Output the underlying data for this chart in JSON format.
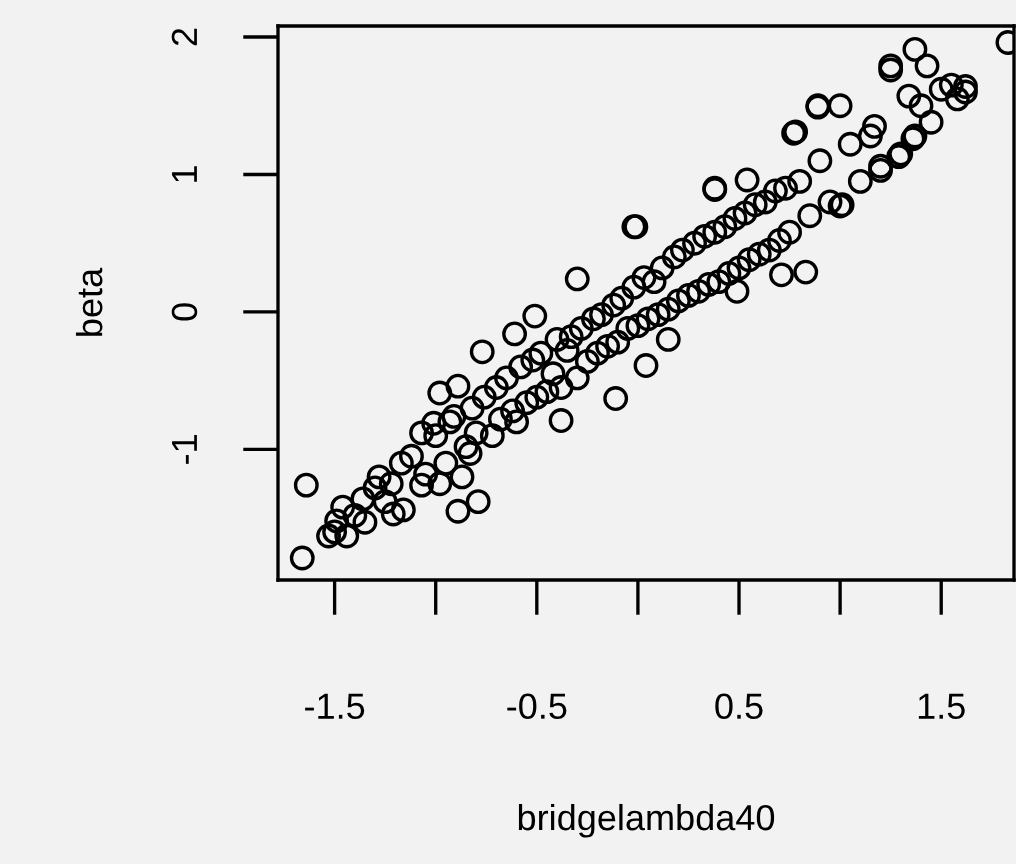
{
  "chart_data": {
    "type": "scatter",
    "xlabel": "bridgelambda40",
    "ylabel": "beta",
    "xlim": [
      -1.78,
      1.86
    ],
    "ylim": [
      -1.95,
      2.08
    ],
    "xticks": [
      -1.5,
      -0.5,
      0.5,
      1.5
    ],
    "yticks": [
      -1,
      0,
      1,
      2
    ],
    "marker": "circle",
    "grid": false,
    "legend": false,
    "series": [
      {
        "color": "#000000",
        "x": [
          -1.66,
          -1.64,
          -1.53,
          -1.49,
          -1.44,
          -1.36,
          -1.35,
          -1.28,
          -1.21,
          -1.16,
          -1.22,
          -1.17,
          -1.07,
          -1.07,
          -0.98,
          -0.89,
          -0.79,
          -0.87,
          -0.98,
          -0.89,
          -1.01,
          -0.91,
          -0.83,
          -0.77,
          -0.61,
          -0.51,
          -0.3,
          -0.38,
          -0.11,
          0.04,
          0.15,
          -0.01,
          0.38,
          0.49,
          0.71,
          0.83,
          1.01,
          0.78,
          0.89,
          1.0,
          1.2,
          1.3,
          1.36,
          1.17,
          1.25,
          1.37,
          1.25,
          1.83,
          1.62,
          1.5,
          1.43,
          1.34,
          1.37,
          1.29,
          1.2,
          0.89,
          0.77,
          1.0,
          0.38,
          0.54,
          -0.02,
          -1.5,
          -1.46,
          -1.4,
          -1.3,
          -1.25,
          -1.12,
          -1.05,
          -1.0,
          -0.95,
          -0.93,
          -0.85,
          -0.82,
          -0.8,
          -0.76,
          -0.72,
          -0.7,
          -0.68,
          -0.65,
          -0.62,
          -0.6,
          -0.58,
          -0.55,
          -0.52,
          -0.5,
          -0.48,
          -0.45,
          -0.42,
          -0.4,
          -0.38,
          -0.35,
          -0.33,
          -0.3,
          -0.28,
          -0.25,
          -0.22,
          -0.2,
          -0.18,
          -0.15,
          -0.12,
          -0.1,
          -0.08,
          -0.05,
          -0.02,
          0.0,
          0.03,
          0.05,
          0.08,
          0.1,
          0.12,
          0.15,
          0.18,
          0.2,
          0.22,
          0.25,
          0.28,
          0.3,
          0.33,
          0.35,
          0.38,
          0.4,
          0.43,
          0.45,
          0.48,
          0.5,
          0.53,
          0.55,
          0.58,
          0.6,
          0.63,
          0.65,
          0.68,
          0.7,
          0.73,
          0.75,
          0.8,
          0.85,
          0.9,
          0.95,
          1.05,
          1.1,
          1.15,
          1.4,
          1.45,
          1.55,
          1.58,
          1.62
        ],
        "values": [
          -1.79,
          -1.26,
          -1.63,
          -1.52,
          -1.63,
          -1.36,
          -1.53,
          -1.2,
          -1.47,
          -1.44,
          -1.25,
          -1.1,
          -1.26,
          -0.88,
          -1.25,
          -1.45,
          -1.38,
          -1.2,
          -0.59,
          -0.54,
          -0.81,
          -0.76,
          -1.03,
          -0.29,
          -0.16,
          -0.03,
          0.24,
          -0.79,
          -0.63,
          -0.39,
          -0.2,
          0.62,
          0.9,
          0.15,
          0.27,
          0.29,
          0.78,
          1.31,
          1.49,
          1.5,
          1.06,
          1.15,
          1.26,
          1.35,
          1.76,
          1.91,
          1.79,
          1.96,
          1.64,
          1.62,
          1.79,
          1.57,
          1.28,
          1.13,
          1.03,
          1.5,
          1.3,
          0.77,
          0.89,
          0.96,
          0.62,
          -1.6,
          -1.42,
          -1.48,
          -1.28,
          -1.38,
          -1.05,
          -1.18,
          -0.9,
          -1.1,
          -0.8,
          -0.98,
          -0.7,
          -0.88,
          -0.62,
          -0.9,
          -0.55,
          -0.78,
          -0.48,
          -0.72,
          -0.8,
          -0.4,
          -0.66,
          -0.35,
          -0.62,
          -0.3,
          -0.58,
          -0.45,
          -0.2,
          -0.55,
          -0.28,
          -0.18,
          -0.48,
          -0.12,
          -0.36,
          -0.05,
          -0.3,
          -0.02,
          -0.25,
          0.05,
          -0.22,
          0.1,
          -0.12,
          0.18,
          -0.1,
          0.25,
          -0.05,
          0.22,
          -0.02,
          0.32,
          0.02,
          0.4,
          0.08,
          0.45,
          0.12,
          0.5,
          0.15,
          0.55,
          0.2,
          0.58,
          0.22,
          0.62,
          0.28,
          0.68,
          0.32,
          0.72,
          0.38,
          0.78,
          0.42,
          0.8,
          0.45,
          0.88,
          0.52,
          0.9,
          0.58,
          0.95,
          0.7,
          1.1,
          0.8,
          1.22,
          0.95,
          1.28,
          1.5,
          1.38,
          1.65,
          1.55,
          1.6
        ]
      }
    ]
  }
}
